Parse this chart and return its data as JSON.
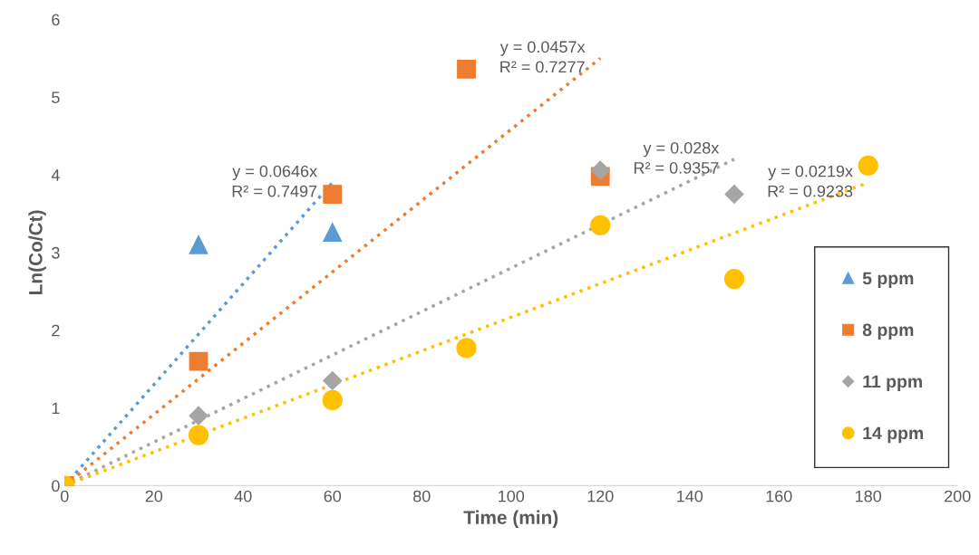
{
  "chart_data": {
    "type": "scatter",
    "xlabel": "Time (min)",
    "ylabel": "Ln(Co/Ct)",
    "xlim": [
      0,
      200
    ],
    "ylim": [
      0,
      6
    ],
    "xticks": [
      0,
      20,
      40,
      60,
      80,
      100,
      120,
      140,
      160,
      180,
      200
    ],
    "yticks": [
      0,
      1,
      2,
      3,
      4,
      5,
      6
    ],
    "grid": false,
    "legend": "right",
    "series": [
      {
        "name": "5 ppm",
        "marker": "triangle",
        "color": "#5b9bd5",
        "x": [
          30,
          60
        ],
        "values": [
          3.1,
          3.26
        ]
      },
      {
        "name": "8 ppm",
        "marker": "square",
        "color": "#ed7d31",
        "x": [
          0,
          30,
          60,
          90,
          120
        ],
        "values": [
          0,
          1.6,
          3.75,
          5.36,
          3.98
        ]
      },
      {
        "name": "11 ppm",
        "marker": "diamond",
        "color": "#a5a5a5",
        "x": [
          0,
          30,
          60,
          120,
          150
        ],
        "values": [
          0,
          0.9,
          1.35,
          4.06,
          3.75
        ]
      },
      {
        "name": "14 ppm",
        "marker": "circle",
        "color": "#ffc000",
        "x": [
          0,
          30,
          60,
          90,
          120,
          150,
          180
        ],
        "values": [
          0,
          0.65,
          1.1,
          1.77,
          3.35,
          2.66,
          4.12
        ]
      },
      {
        "type": "line",
        "line_style": "dotted",
        "marker": "none",
        "color": "#5b9bd5",
        "x": [
          0,
          60
        ],
        "values": [
          0,
          3.9
        ]
      },
      {
        "type": "line",
        "line_style": "dotted",
        "marker": "none",
        "color": "#ed7d31",
        "x": [
          0,
          120
        ],
        "values": [
          0,
          5.5
        ]
      },
      {
        "type": "line",
        "line_style": "dotted",
        "marker": "none",
        "color": "#a5a5a5",
        "x": [
          0,
          150
        ],
        "values": [
          0,
          4.2
        ]
      },
      {
        "type": "line",
        "line_style": "dotted",
        "marker": "none",
        "color": "#ffc000",
        "x": [
          0,
          180
        ],
        "values": [
          0,
          3.9
        ]
      }
    ],
    "annotations": [
      "y = 0.0646x\nR² = 0.7497",
      "y = 0.0457x\nR² = 0.7277",
      "y = 0.028x\nR² = 0.9357",
      "y = 0.0219x\nR² = 0.9233"
    ]
  }
}
